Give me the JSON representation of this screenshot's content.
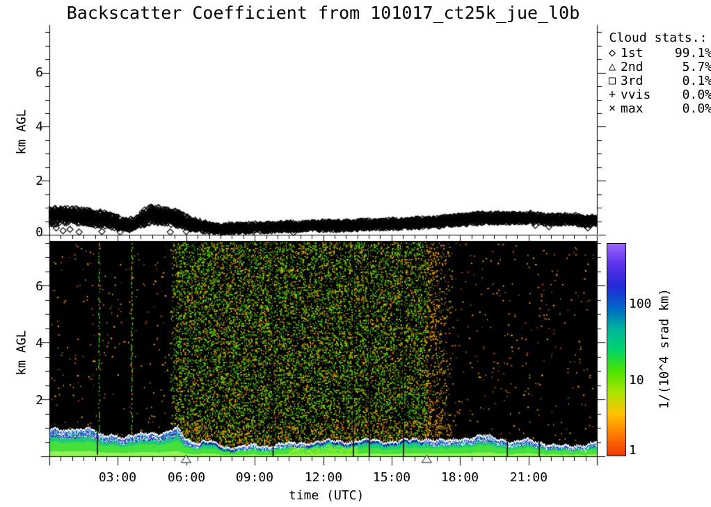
{
  "title": "Backscatter Coefficient from 101017_ct25k_jue_l0b",
  "axes": {
    "y_label": "km AGL",
    "x_label": "time (UTC)",
    "x_tick_labels": [
      "03:00",
      "06:00",
      "09:00",
      "12:00",
      "15:00",
      "18:00",
      "21:00"
    ],
    "top_y_tick_labels": [
      "0",
      "2",
      "4",
      "6"
    ],
    "bottom_y_tick_labels": [
      "2",
      "4",
      "6"
    ]
  },
  "legend": {
    "title": "Cloud stats.:",
    "items": [
      {
        "marker": "◇",
        "symbol": "diamond",
        "label": "1st",
        "value": "99.1%"
      },
      {
        "marker": "△",
        "symbol": "triangle",
        "label": "2nd",
        "value": "5.7%"
      },
      {
        "marker": "□",
        "symbol": "square",
        "label": "3rd",
        "value": "0.1%"
      },
      {
        "marker": "+",
        "symbol": "plus",
        "label": "vvis",
        "value": "0.0%"
      },
      {
        "marker": "×",
        "symbol": "cross",
        "label": "max",
        "value": "0.0%"
      }
    ]
  },
  "colorbar": {
    "tick_labels": [
      "1",
      "10",
      "100"
    ],
    "unit_label": "1/(10^4 srad km)",
    "stops": [
      "#f03800",
      "#ff7b00",
      "#ffc400",
      "#a8e400",
      "#4ce400",
      "#00d46c",
      "#00b4a0",
      "#0064c8",
      "#2428d8",
      "#5a32e8",
      "#9b64ff"
    ]
  },
  "chart_data": [
    {
      "type": "scatter",
      "panel": "cloud-base-heights",
      "title": "Backscatter Coefficient from 101017_ct25k_jue_l0b",
      "ylabel": "km AGL",
      "ylim": [
        0,
        7.75
      ],
      "xlim_hours": [
        0,
        24
      ],
      "marker": "open-diamond",
      "band_envelope_points": [
        [
          0,
          0.35,
          0.95
        ],
        [
          0.5,
          0.4,
          1.0
        ],
        [
          1,
          0.45,
          1.0
        ],
        [
          1.5,
          0.4,
          0.95
        ],
        [
          2,
          0.35,
          0.9
        ],
        [
          2.5,
          0.3,
          0.8
        ],
        [
          3,
          0.22,
          0.65
        ],
        [
          3.5,
          0.18,
          0.55
        ],
        [
          4,
          0.3,
          0.85
        ],
        [
          4.5,
          0.45,
          1.05
        ],
        [
          5,
          0.4,
          1.0
        ],
        [
          5.5,
          0.35,
          0.9
        ],
        [
          6,
          0.25,
          0.7
        ],
        [
          6.5,
          0.15,
          0.5
        ],
        [
          7,
          0.1,
          0.4
        ],
        [
          7.5,
          0.08,
          0.35
        ],
        [
          8,
          0.1,
          0.38
        ],
        [
          9,
          0.12,
          0.4
        ],
        [
          10,
          0.15,
          0.42
        ],
        [
          11,
          0.18,
          0.45
        ],
        [
          12,
          0.18,
          0.48
        ],
        [
          13,
          0.2,
          0.5
        ],
        [
          14,
          0.22,
          0.52
        ],
        [
          15,
          0.25,
          0.55
        ],
        [
          16,
          0.28,
          0.58
        ],
        [
          17,
          0.32,
          0.62
        ],
        [
          18,
          0.38,
          0.7
        ],
        [
          18.5,
          0.42,
          0.75
        ],
        [
          19,
          0.45,
          0.78
        ],
        [
          20,
          0.45,
          0.78
        ],
        [
          21,
          0.45,
          0.8
        ],
        [
          21.5,
          0.42,
          0.75
        ],
        [
          22,
          0.4,
          0.72
        ],
        [
          22.5,
          0.42,
          0.72
        ],
        [
          23,
          0.42,
          0.75
        ],
        [
          23.5,
          0.32,
          0.62
        ],
        [
          24,
          0.38,
          0.68
        ]
      ],
      "squares_3rd_layer": [
        [
          2.25,
          0.62
        ],
        [
          2.85,
          0.6
        ]
      ],
      "triangles_2nd_layer": [
        [
          6.2,
          0.42
        ],
        [
          6.4,
          0.5
        ],
        [
          6.6,
          0.46
        ],
        [
          6.85,
          0.4
        ]
      ],
      "outlier_diamonds": [
        [
          0.3,
          0.25
        ],
        [
          0.6,
          0.15
        ],
        [
          0.9,
          0.2
        ],
        [
          1.3,
          0.1
        ],
        [
          2.3,
          0.12
        ],
        [
          3.1,
          0.1
        ],
        [
          5.3,
          0.1
        ],
        [
          6.0,
          0.12
        ],
        [
          10.7,
          0.08
        ],
        [
          21.3,
          0.35
        ],
        [
          21.9,
          0.3
        ],
        [
          23.6,
          0.25
        ]
      ]
    },
    {
      "type": "heatmap",
      "panel": "attenuated-backscatter",
      "unit": "1/(10^4 srad km)",
      "value_scale": "log",
      "colorbar_tick_values": [
        1,
        10,
        100
      ],
      "xlim_hours": [
        0,
        24
      ],
      "ylim_km": [
        0,
        7.56
      ],
      "background_color": "#000000",
      "mixed_layer_top_points": [
        [
          0,
          0.85
        ],
        [
          0.3,
          0.95
        ],
        [
          0.6,
          0.9
        ],
        [
          1,
          1.0
        ],
        [
          1.3,
          0.9
        ],
        [
          1.6,
          0.95
        ],
        [
          2,
          0.85
        ],
        [
          2.4,
          0.7
        ],
        [
          2.7,
          0.8
        ],
        [
          3,
          0.65
        ],
        [
          3.3,
          0.6
        ],
        [
          3.7,
          0.7
        ],
        [
          4,
          0.8
        ],
        [
          4.4,
          0.85
        ],
        [
          4.8,
          0.75
        ],
        [
          5.2,
          0.8
        ],
        [
          5.6,
          1.0
        ],
        [
          5.9,
          0.7
        ],
        [
          6.2,
          0.5
        ],
        [
          6.6,
          0.45
        ],
        [
          7,
          0.5
        ],
        [
          7.4,
          0.4
        ],
        [
          7.9,
          0.3
        ],
        [
          8.5,
          0.32
        ],
        [
          9,
          0.35
        ],
        [
          9.5,
          0.33
        ],
        [
          10,
          0.4
        ],
        [
          10.5,
          0.42
        ],
        [
          11,
          0.45
        ],
        [
          11.5,
          0.48
        ],
        [
          12,
          0.5
        ],
        [
          12.5,
          0.52
        ],
        [
          13,
          0.5
        ],
        [
          13.5,
          0.52
        ],
        [
          14,
          0.55
        ],
        [
          14.5,
          0.52
        ],
        [
          15,
          0.5
        ],
        [
          15.5,
          0.52
        ],
        [
          16,
          0.55
        ],
        [
          16.5,
          0.6
        ],
        [
          17,
          0.55
        ],
        [
          17.5,
          0.5
        ],
        [
          18,
          0.6
        ],
        [
          18.5,
          0.65
        ],
        [
          19,
          0.7
        ],
        [
          19.3,
          0.65
        ],
        [
          19.6,
          0.6
        ],
        [
          20,
          0.55
        ],
        [
          20.4,
          0.5
        ],
        [
          20.8,
          0.55
        ],
        [
          21.2,
          0.5
        ],
        [
          21.6,
          0.45
        ],
        [
          22,
          0.4
        ],
        [
          22.4,
          0.35
        ],
        [
          22.8,
          0.3
        ],
        [
          23.2,
          0.35
        ],
        [
          23.6,
          0.45
        ],
        [
          24,
          0.5
        ]
      ],
      "daytime_noise_hours": [
        5.5,
        16.6
      ],
      "green_dotted_line_hours": [
        2.17,
        3.6
      ],
      "gap_line_hours": [
        2.08,
        9.78,
        13.3,
        14.0,
        15.5,
        20.05,
        21.45
      ],
      "bottom_axis_triangle_hours": [
        5.99,
        16.54
      ],
      "cloud_hours": [
        [
          0,
          6.6
        ],
        [
          8.2,
          11.2
        ],
        [
          16.4,
          24
        ]
      ],
      "colors": {
        "sparse_dots": [
          "#ff9100",
          "#ffb400",
          "#e86c00"
        ],
        "speckle_green": [
          "#3cc800",
          "#55e000",
          "#2ca000",
          "#78e818"
        ],
        "speckle_warm": [
          "#ff9100",
          "#e87800",
          "#ffb400",
          "#c8c800"
        ],
        "band_bottom": "#96f05a",
        "band_low": "#46e03c",
        "band_mid": "#1ec87d",
        "band_upper": "#14b4b4",
        "band_bright": "#96f028",
        "cloud_blue": [
          "#2828d2",
          "#4646e6",
          "#6432d2",
          "#1e1e96"
        ],
        "contour": "#ffffff",
        "dotted_line": "#55dd22"
      }
    }
  ]
}
